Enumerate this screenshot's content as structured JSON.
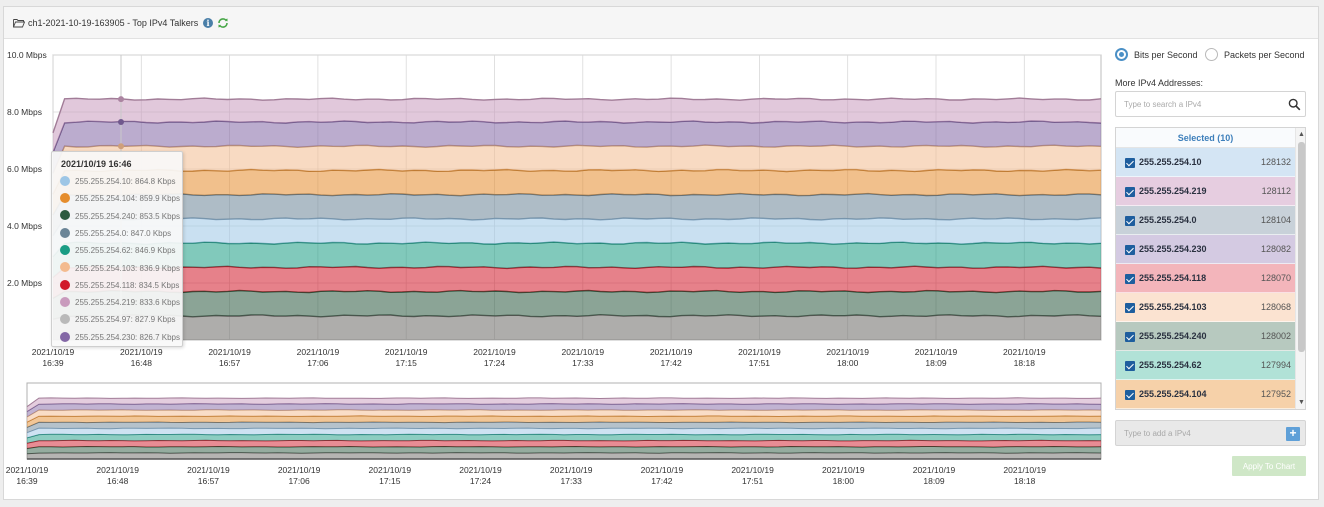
{
  "header": {
    "title": "ch1-2021-10-19-163905 - Top IPv4 Talkers",
    "info_glyph": "i"
  },
  "colors": {
    "gray": "#b9b9b9",
    "pink": "#c99bbd",
    "purple": "#8468a6",
    "peach": "#f3bb8f",
    "orange": "#e58d2d",
    "slate": "#6b8597",
    "lightblue": "#9dc6e6",
    "teal": "#1a9c84",
    "red": "#d11a2a",
    "darkgreen": "#2c5a3f",
    "base": "#6b6a66"
  },
  "chart_data": {
    "type": "area",
    "stacked": true,
    "ylim": [
      0,
      10
    ],
    "yticks": [
      "10.0 Mbps",
      "8.0 Mbps",
      "6.0 Mbps",
      "4.0 Mbps",
      "2.0 Mbps"
    ],
    "xticks": [
      [
        "2021/10/19",
        "16:39"
      ],
      [
        "2021/10/19",
        "16:48"
      ],
      [
        "2021/10/19",
        "16:57"
      ],
      [
        "2021/10/19",
        "17:06"
      ],
      [
        "2021/10/19",
        "17:15"
      ],
      [
        "2021/10/19",
        "17:24"
      ],
      [
        "2021/10/19",
        "17:33"
      ],
      [
        "2021/10/19",
        "17:42"
      ],
      [
        "2021/10/19",
        "17:51"
      ],
      [
        "2021/10/19",
        "18:00"
      ],
      [
        "2021/10/19",
        "18:09"
      ],
      [
        "2021/10/19",
        "18:18"
      ]
    ],
    "overview_xticks": [
      [
        "2021/10/19",
        "16:39"
      ],
      [
        "2021/10/19",
        "16:48"
      ],
      [
        "2021/10/19",
        "16:57"
      ],
      [
        "2021/10/19",
        "17:06"
      ],
      [
        "2021/10/19",
        "17:15"
      ],
      [
        "2021/10/19",
        "17:24"
      ],
      [
        "2021/10/19",
        "17:33"
      ],
      [
        "2021/10/19",
        "17:42"
      ],
      [
        "2021/10/19",
        "17:51"
      ],
      [
        "2021/10/19",
        "18:00"
      ],
      [
        "2021/10/19",
        "18:09"
      ],
      [
        "2021/10/19",
        "18:18"
      ]
    ],
    "series_cumulative_mbps": [
      {
        "color": "base",
        "level": 0.85
      },
      {
        "color": "darkgreen",
        "level": 1.7
      },
      {
        "color": "red",
        "level": 2.55
      },
      {
        "color": "teal",
        "level": 3.4
      },
      {
        "color": "lightblue",
        "level": 4.25
      },
      {
        "color": "slate",
        "level": 5.1
      },
      {
        "color": "orange",
        "level": 5.95
      },
      {
        "color": "peach",
        "level": 6.8
      },
      {
        "color": "purple",
        "level": 7.65
      },
      {
        "color": "pink",
        "level": 8.45
      }
    ]
  },
  "tooltip": {
    "title": "2021/10/19 16:46",
    "rows": [
      {
        "label": "255.255.254.10: 864.8 Kbps",
        "color": "#9dc6e6"
      },
      {
        "label": "255.255.254.104: 859.9 Kbps",
        "color": "#e58d2d"
      },
      {
        "label": "255.255.254.240: 853.5 Kbps",
        "color": "#2c5a3f"
      },
      {
        "label": "255.255.254.0: 847.0 Kbps",
        "color": "#6b8597"
      },
      {
        "label": "255.255.254.62: 846.9 Kbps",
        "color": "#1a9c84"
      },
      {
        "label": "255.255.254.103: 836.9 Kbps",
        "color": "#f3bb8f"
      },
      {
        "label": "255.255.254.118: 834.5 Kbps",
        "color": "#d11a2a"
      },
      {
        "label": "255.255.254.219: 833.6 Kbps",
        "color": "#c99bbd"
      },
      {
        "label": "255.255.254.97: 827.9 Kbps",
        "color": "#b9b9b9"
      },
      {
        "label": "255.255.254.230: 826.7 Kbps",
        "color": "#8468a6"
      }
    ]
  },
  "controls": {
    "radio_bits": "Bits per Second",
    "radio_packets": "Packets per Second",
    "more_label": "More IPv4 Addresses:",
    "search_placeholder": "Type to search a IPv4",
    "selected_header": "Selected (10)",
    "add_placeholder": "Type to add a IPv4",
    "add_glyph": "+",
    "apply_label": "Apply To Chart",
    "scroll_up_glyph": "▲",
    "scroll_down_glyph": "▼"
  },
  "selected": [
    {
      "ip": "255.255.254.10",
      "count": "128132",
      "bg": "#d4e5f4"
    },
    {
      "ip": "255.255.254.219",
      "count": "128112",
      "bg": "#e6cde0"
    },
    {
      "ip": "255.255.254.0",
      "count": "128104",
      "bg": "#c8d1d9"
    },
    {
      "ip": "255.255.254.230",
      "count": "128082",
      "bg": "#d4cae2"
    },
    {
      "ip": "255.255.254.118",
      "count": "128070",
      "bg": "#f3b5bb"
    },
    {
      "ip": "255.255.254.103",
      "count": "128068",
      "bg": "#fbe3d1"
    },
    {
      "ip": "255.255.254.240",
      "count": "128002",
      "bg": "#b7c9bf"
    },
    {
      "ip": "255.255.254.62",
      "count": "127994",
      "bg": "#b1e2d7"
    },
    {
      "ip": "255.255.254.104",
      "count": "127952",
      "bg": "#f6d1a9"
    }
  ]
}
